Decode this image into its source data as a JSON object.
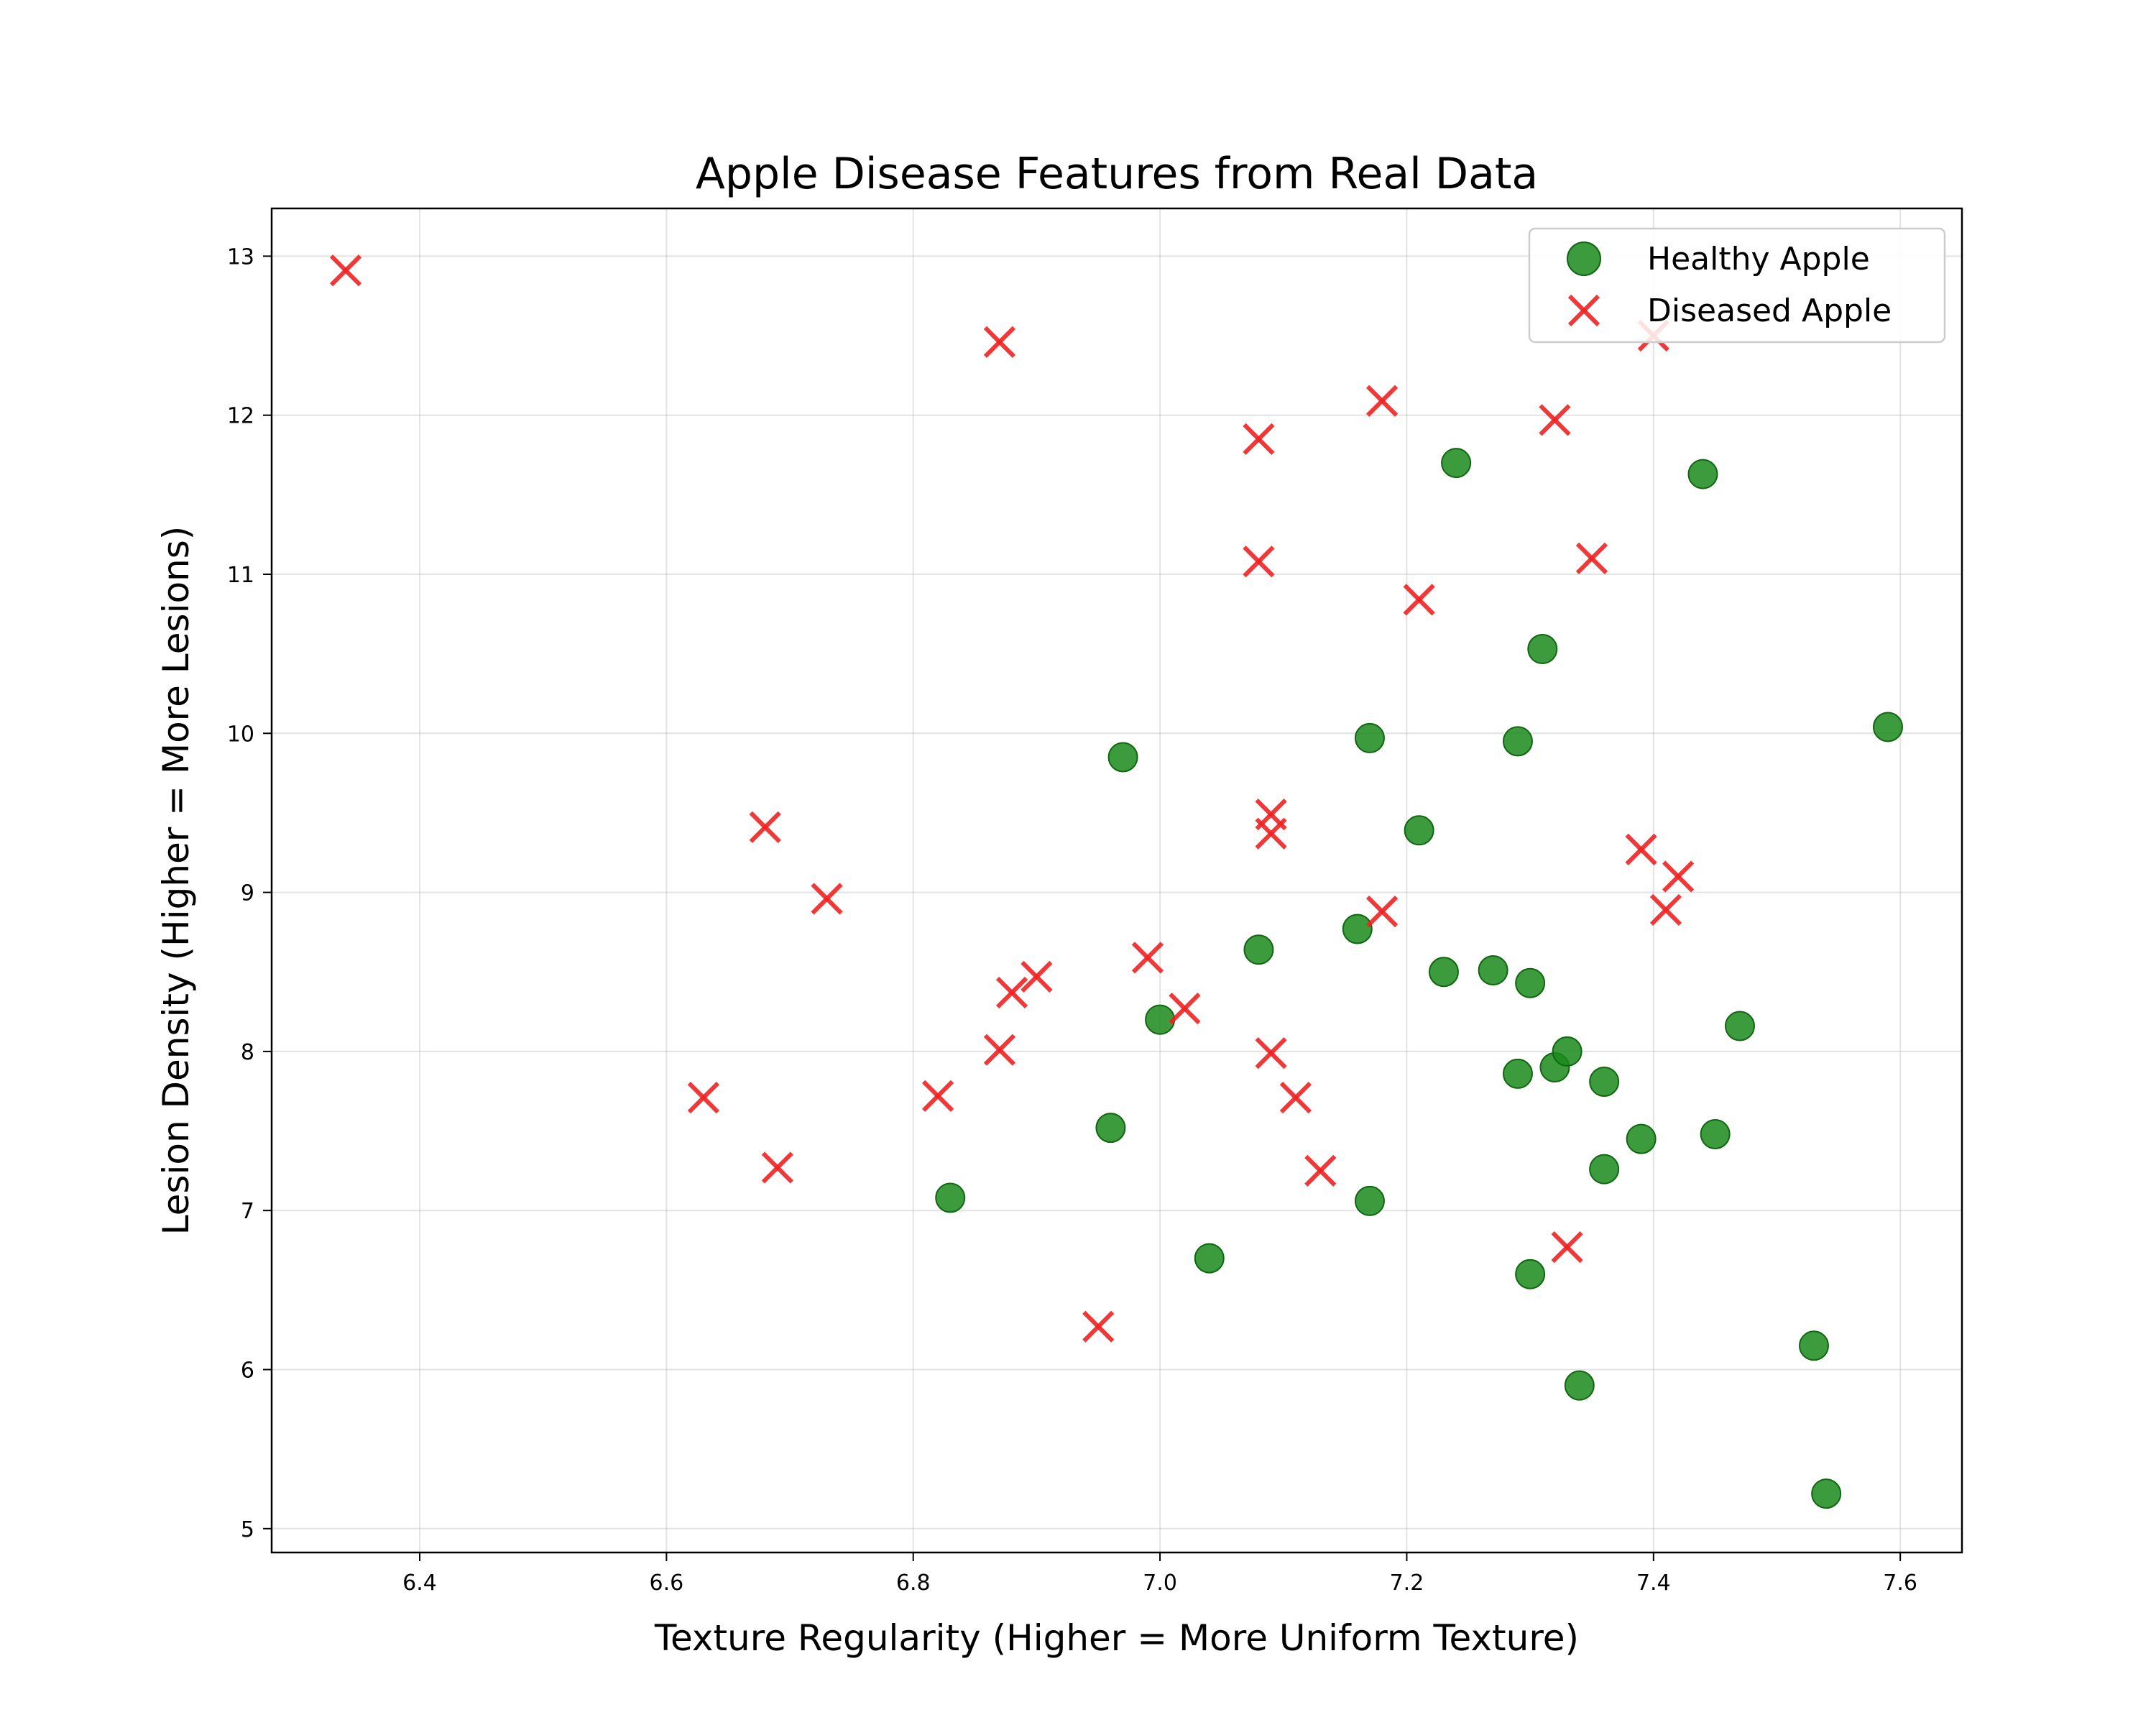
{
  "chart_data": {
    "type": "scatter",
    "title": "Apple Disease Features from Real Data",
    "xlabel": "Texture Regularity (Higher = More Uniform Texture)",
    "ylabel": "Lesion Density (Higher = More Lesions)",
    "xlim": [
      6.28,
      7.65
    ],
    "ylim": [
      4.85,
      13.3
    ],
    "xticks": [
      "6.4",
      "6.6",
      "6.8",
      "7.0",
      "7.2",
      "7.4",
      "7.6"
    ],
    "yticks": [
      "5",
      "6",
      "7",
      "8",
      "9",
      "10",
      "11",
      "12",
      "13"
    ],
    "grid": true,
    "legend_position": "top-right",
    "series": [
      {
        "name": "Healthy Apple",
        "marker": "circle",
        "color": "#1a8a1a",
        "points": [
          [
            6.83,
            7.08
          ],
          [
            6.96,
            7.52
          ],
          [
            6.97,
            9.85
          ],
          [
            7.0,
            8.2
          ],
          [
            7.04,
            6.7
          ],
          [
            7.08,
            8.64
          ],
          [
            7.16,
            8.77
          ],
          [
            7.17,
            9.97
          ],
          [
            7.17,
            7.06
          ],
          [
            7.21,
            9.39
          ],
          [
            7.23,
            8.5
          ],
          [
            7.24,
            11.7
          ],
          [
            7.27,
            8.51
          ],
          [
            7.29,
            7.86
          ],
          [
            7.29,
            9.95
          ],
          [
            7.3,
            8.43
          ],
          [
            7.3,
            6.6
          ],
          [
            7.31,
            10.53
          ],
          [
            7.32,
            7.9
          ],
          [
            7.33,
            8.0
          ],
          [
            7.34,
            5.9
          ],
          [
            7.36,
            7.26
          ],
          [
            7.36,
            7.81
          ],
          [
            7.39,
            7.45
          ],
          [
            7.44,
            11.63
          ],
          [
            7.45,
            7.48
          ],
          [
            7.47,
            8.16
          ],
          [
            7.53,
            6.15
          ],
          [
            7.54,
            5.22
          ],
          [
            7.59,
            10.04
          ]
        ]
      },
      {
        "name": "Diseased Apple",
        "marker": "x",
        "color": "#ee2222",
        "points": [
          [
            6.34,
            12.91
          ],
          [
            6.63,
            7.71
          ],
          [
            6.68,
            9.41
          ],
          [
            6.69,
            7.27
          ],
          [
            6.73,
            8.96
          ],
          [
            6.82,
            7.72
          ],
          [
            6.87,
            12.46
          ],
          [
            6.87,
            8.01
          ],
          [
            6.88,
            8.37
          ],
          [
            6.9,
            8.47
          ],
          [
            6.95,
            6.27
          ],
          [
            6.99,
            8.59
          ],
          [
            7.02,
            8.27
          ],
          [
            7.08,
            11.85
          ],
          [
            7.08,
            11.08
          ],
          [
            7.09,
            9.49
          ],
          [
            7.09,
            9.37
          ],
          [
            7.09,
            7.99
          ],
          [
            7.11,
            7.71
          ],
          [
            7.13,
            7.25
          ],
          [
            7.18,
            12.09
          ],
          [
            7.18,
            8.88
          ],
          [
            7.21,
            10.84
          ],
          [
            7.32,
            11.97
          ],
          [
            7.33,
            6.77
          ],
          [
            7.35,
            11.1
          ],
          [
            7.39,
            9.27
          ],
          [
            7.4,
            12.5
          ],
          [
            7.41,
            8.89
          ],
          [
            7.42,
            9.1
          ]
        ]
      }
    ]
  }
}
